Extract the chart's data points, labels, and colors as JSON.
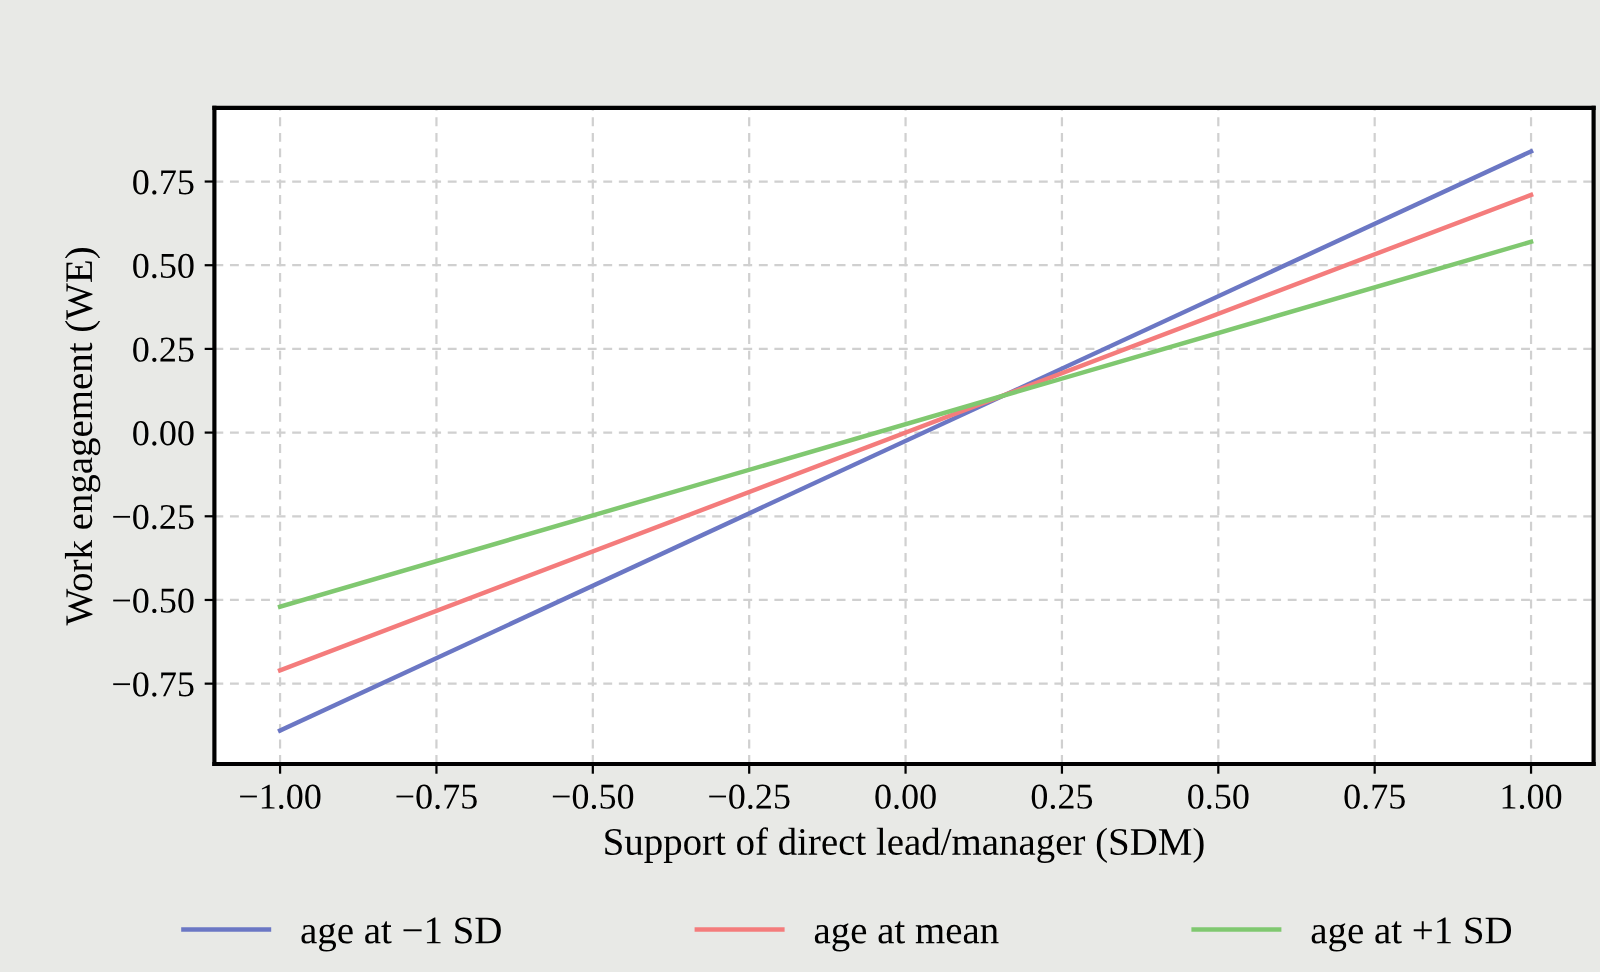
{
  "chart_data": {
    "type": "line",
    "xlabel": "Support of direct lead/manager (SDM)",
    "ylabel": "Work engagement (WE)",
    "x": [
      -1.0,
      1.0
    ],
    "series": [
      {
        "name": "age at −1 SD",
        "color": "#6b77c4",
        "values": [
          -0.89,
          0.84
        ]
      },
      {
        "name": "age at mean",
        "color": "#f47c7c",
        "values": [
          -0.71,
          0.71
        ]
      },
      {
        "name": "age at +1 SD",
        "color": "#80c870",
        "values": [
          -0.52,
          0.57
        ]
      }
    ],
    "xlim": [
      -1.105,
      1.1
    ],
    "ylim": [
      -0.99,
      0.97
    ],
    "xticks": [
      {
        "value": -1,
        "label": "−1.00"
      },
      {
        "value": -0.75,
        "label": "−0.75"
      },
      {
        "value": -0.5,
        "label": "−0.50"
      },
      {
        "value": -0.25,
        "label": "−0.25"
      },
      {
        "value": 0,
        "label": "0.00"
      },
      {
        "value": 0.25,
        "label": "0.25"
      },
      {
        "value": 0.5,
        "label": "0.50"
      },
      {
        "value": 0.75,
        "label": "0.75"
      },
      {
        "value": 1,
        "label": "1.00"
      }
    ],
    "yticks": [
      {
        "value": -0.75,
        "label": "−0.75"
      },
      {
        "value": -0.5,
        "label": "−0.50"
      },
      {
        "value": -0.25,
        "label": "−0.25"
      },
      {
        "value": 0,
        "label": "0.00"
      },
      {
        "value": 0.25,
        "label": "0.25"
      },
      {
        "value": 0.5,
        "label": "0.50"
      },
      {
        "value": 0.75,
        "label": "0.75"
      }
    ],
    "grid": true,
    "legend": "bottom",
    "line_style": "solid",
    "marker": "none"
  }
}
